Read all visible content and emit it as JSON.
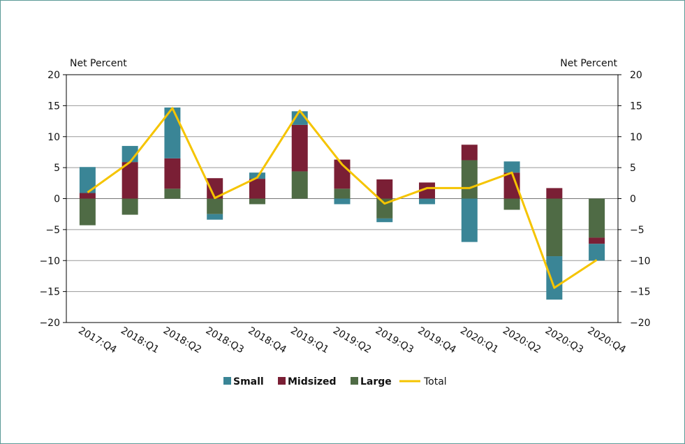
{
  "chart_data": {
    "type": "bar",
    "stacked": true,
    "left_axis_label": "Net Percent",
    "right_axis_label": "Net Percent",
    "ylim": [
      -20,
      20
    ],
    "yticks": [
      20,
      15,
      10,
      5,
      0,
      -5,
      -10,
      -15,
      -20
    ],
    "categories": [
      "2017:Q4",
      "2018:Q1",
      "2018:Q2",
      "2018:Q3",
      "2018:Q4",
      "2019:Q1",
      "2019:Q2",
      "2019:Q3",
      "2019:Q4",
      "2020:Q1",
      "2020:Q2",
      "2020:Q3",
      "2020:Q4"
    ],
    "series": [
      {
        "name": "Large",
        "type": "bar",
        "color": "#4f6b45",
        "values": [
          -4.3,
          -2.6,
          1.6,
          -2.5,
          -0.9,
          4.4,
          1.6,
          -3.2,
          0.0,
          6.2,
          -1.8,
          -9.3,
          -6.3
        ]
      },
      {
        "name": "Midsized",
        "type": "bar",
        "color": "#7a1f35",
        "values": [
          0.9,
          5.9,
          4.9,
          3.3,
          3.2,
          7.5,
          4.7,
          3.1,
          2.6,
          2.5,
          4.2,
          1.7,
          -1.0
        ]
      },
      {
        "name": "Small",
        "type": "bar",
        "color": "#3a8596",
        "values": [
          4.2,
          2.6,
          8.2,
          -0.9,
          1.0,
          2.2,
          -0.9,
          -0.6,
          -0.9,
          -7.0,
          1.8,
          -7.0,
          -2.7
        ]
      },
      {
        "name": "Total",
        "type": "line",
        "color": "#f5c400",
        "values": [
          1.0,
          5.9,
          14.6,
          0.1,
          3.4,
          14.2,
          5.5,
          -0.8,
          1.7,
          1.7,
          4.2,
          -14.4,
          -9.9
        ]
      }
    ],
    "legend": [
      {
        "name": "Small",
        "color": "#3a8596",
        "marker": "square"
      },
      {
        "name": "Midsized",
        "color": "#7a1f35",
        "marker": "square"
      },
      {
        "name": "Large",
        "color": "#4f6b45",
        "marker": "square"
      },
      {
        "name": "Total",
        "color": "#f5c400",
        "marker": "line"
      }
    ],
    "legend_position": "bottom",
    "grid": true
  }
}
